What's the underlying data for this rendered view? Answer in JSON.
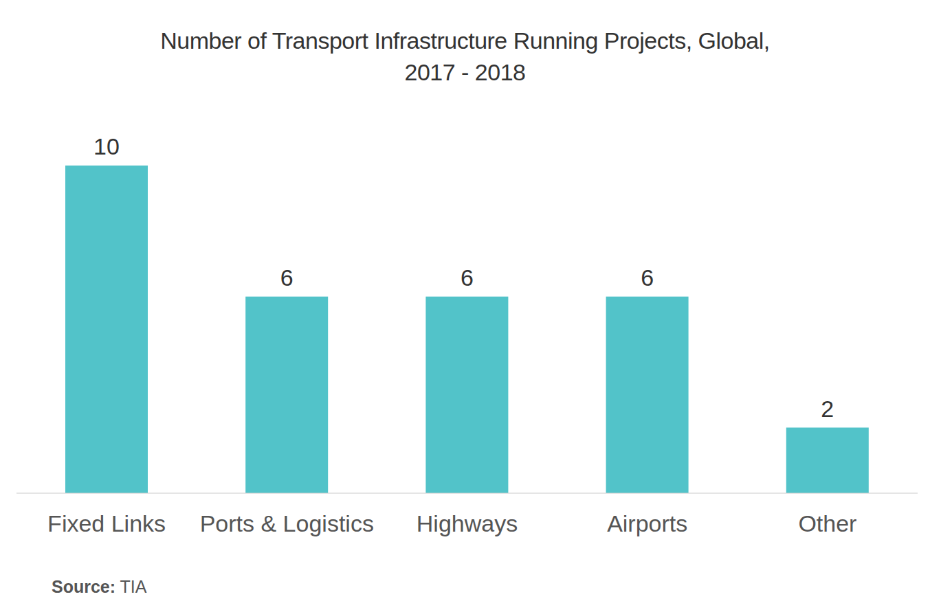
{
  "chart_data": {
    "type": "bar",
    "title": "Number of Transport Infrastructure Running Projects, Global, 2017 - 2018",
    "categories": [
      "Fixed Links",
      "Ports & Logistics",
      "Highways",
      "Airports",
      "Other"
    ],
    "values": [
      10,
      6,
      6,
      6,
      2
    ],
    "color": "#52c3c9",
    "ylim": [
      0,
      10
    ],
    "yticks": [],
    "grid": false,
    "data_labels": true,
    "tick_labels": "x",
    "source": "Source: TIA"
  }
}
